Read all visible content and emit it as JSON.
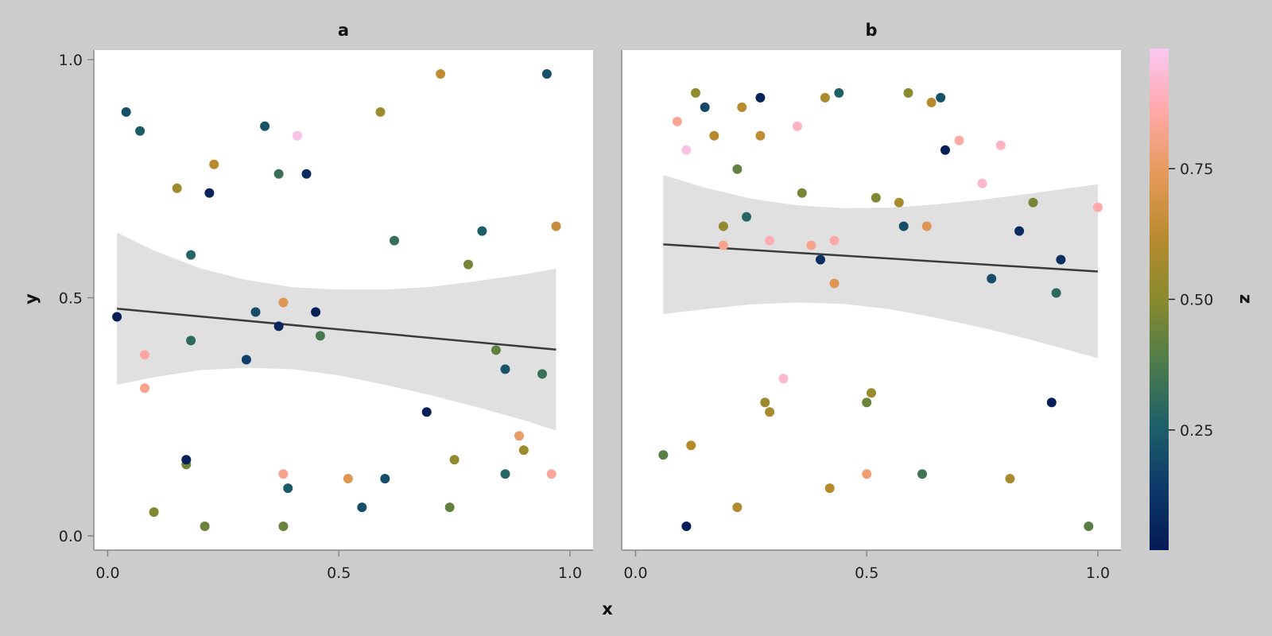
{
  "chart_data": {
    "type": "scatter",
    "xlabel": "x",
    "ylabel": "y",
    "colorbar": {
      "label": "z",
      "ticks": [
        0.25,
        0.5,
        0.75
      ],
      "tick_labels": [
        "0.25",
        "0.50",
        "0.75"
      ],
      "range": [
        0.02,
        0.98
      ],
      "colormap": [
        "#061a55",
        "#0d3a6a",
        "#1e6068",
        "#4e7c4a",
        "#8a8a2e",
        "#b88a2e",
        "#e69a5a",
        "#ffa8a8",
        "#f9c8f3"
      ]
    },
    "panels": [
      {
        "title": "a",
        "xlim": [
          -0.03,
          1.05
        ],
        "ylim": [
          -0.03,
          1.02
        ],
        "xticks": [
          0.0,
          0.5,
          1.0
        ],
        "xtick_labels": [
          "0.0",
          "0.5",
          "1.0"
        ],
        "yticks": [
          0.0,
          0.5,
          1.0
        ],
        "ytick_labels": [
          "0.0",
          "0.5",
          "1.0"
        ],
        "fit_line": {
          "x": [
            0.02,
            0.97
          ],
          "y": [
            0.477,
            0.391
          ]
        },
        "band": {
          "x": [
            0.02,
            0.1,
            0.2,
            0.3,
            0.4,
            0.5,
            0.6,
            0.7,
            0.8,
            0.9,
            0.97
          ],
          "upper": [
            0.637,
            0.599,
            0.562,
            0.537,
            0.522,
            0.517,
            0.517,
            0.523,
            0.535,
            0.549,
            0.561
          ],
          "lower": [
            0.317,
            0.333,
            0.348,
            0.353,
            0.35,
            0.337,
            0.317,
            0.295,
            0.27,
            0.243,
            0.221
          ]
        },
        "points": [
          {
            "x": 0.02,
            "y": 0.46,
            "z": 0.03
          },
          {
            "x": 0.04,
            "y": 0.89,
            "z": 0.2
          },
          {
            "x": 0.07,
            "y": 0.85,
            "z": 0.24
          },
          {
            "x": 0.08,
            "y": 0.38,
            "z": 0.85
          },
          {
            "x": 0.08,
            "y": 0.31,
            "z": 0.82
          },
          {
            "x": 0.1,
            "y": 0.05,
            "z": 0.48
          },
          {
            "x": 0.15,
            "y": 0.73,
            "z": 0.56
          },
          {
            "x": 0.17,
            "y": 0.15,
            "z": 0.45
          },
          {
            "x": 0.17,
            "y": 0.16,
            "z": 0.05
          },
          {
            "x": 0.18,
            "y": 0.59,
            "z": 0.28
          },
          {
            "x": 0.18,
            "y": 0.41,
            "z": 0.3
          },
          {
            "x": 0.21,
            "y": 0.02,
            "z": 0.44
          },
          {
            "x": 0.22,
            "y": 0.72,
            "z": 0.06
          },
          {
            "x": 0.23,
            "y": 0.78,
            "z": 0.62
          },
          {
            "x": 0.3,
            "y": 0.37,
            "z": 0.15
          },
          {
            "x": 0.32,
            "y": 0.47,
            "z": 0.2
          },
          {
            "x": 0.34,
            "y": 0.86,
            "z": 0.22
          },
          {
            "x": 0.37,
            "y": 0.76,
            "z": 0.33
          },
          {
            "x": 0.37,
            "y": 0.44,
            "z": 0.06
          },
          {
            "x": 0.38,
            "y": 0.49,
            "z": 0.72
          },
          {
            "x": 0.38,
            "y": 0.13,
            "z": 0.82
          },
          {
            "x": 0.38,
            "y": 0.02,
            "z": 0.44
          },
          {
            "x": 0.39,
            "y": 0.1,
            "z": 0.24
          },
          {
            "x": 0.41,
            "y": 0.84,
            "z": 0.96
          },
          {
            "x": 0.43,
            "y": 0.76,
            "z": 0.08
          },
          {
            "x": 0.45,
            "y": 0.47,
            "z": 0.04
          },
          {
            "x": 0.46,
            "y": 0.42,
            "z": 0.36
          },
          {
            "x": 0.52,
            "y": 0.12,
            "z": 0.72
          },
          {
            "x": 0.55,
            "y": 0.06,
            "z": 0.2
          },
          {
            "x": 0.59,
            "y": 0.89,
            "z": 0.55
          },
          {
            "x": 0.6,
            "y": 0.12,
            "z": 0.2
          },
          {
            "x": 0.62,
            "y": 0.62,
            "z": 0.32
          },
          {
            "x": 0.69,
            "y": 0.26,
            "z": 0.03
          },
          {
            "x": 0.72,
            "y": 0.97,
            "z": 0.64
          },
          {
            "x": 0.74,
            "y": 0.06,
            "z": 0.42
          },
          {
            "x": 0.75,
            "y": 0.16,
            "z": 0.52
          },
          {
            "x": 0.78,
            "y": 0.57,
            "z": 0.46
          },
          {
            "x": 0.81,
            "y": 0.64,
            "z": 0.25
          },
          {
            "x": 0.84,
            "y": 0.39,
            "z": 0.42
          },
          {
            "x": 0.86,
            "y": 0.13,
            "z": 0.28
          },
          {
            "x": 0.86,
            "y": 0.35,
            "z": 0.22
          },
          {
            "x": 0.89,
            "y": 0.21,
            "z": 0.76
          },
          {
            "x": 0.9,
            "y": 0.18,
            "z": 0.54
          },
          {
            "x": 0.94,
            "y": 0.34,
            "z": 0.33
          },
          {
            "x": 0.95,
            "y": 0.97,
            "z": 0.2
          },
          {
            "x": 0.96,
            "y": 0.13,
            "z": 0.84
          },
          {
            "x": 0.97,
            "y": 0.65,
            "z": 0.66
          }
        ]
      },
      {
        "title": "b",
        "xlim": [
          -0.03,
          1.05
        ],
        "ylim": [
          -0.03,
          1.02
        ],
        "xticks": [
          0.0,
          0.5,
          1.0
        ],
        "xtick_labels": [
          "0.0",
          "0.5",
          "1.0"
        ],
        "fit_line": {
          "x": [
            0.06,
            1.0
          ],
          "y": [
            0.612,
            0.555
          ]
        },
        "band": {
          "x": [
            0.06,
            0.15,
            0.25,
            0.35,
            0.45,
            0.55,
            0.65,
            0.75,
            0.85,
            0.93,
            1.0
          ],
          "upper": [
            0.758,
            0.731,
            0.708,
            0.694,
            0.688,
            0.689,
            0.696,
            0.706,
            0.718,
            0.729,
            0.738
          ],
          "lower": [
            0.466,
            0.476,
            0.486,
            0.49,
            0.487,
            0.476,
            0.458,
            0.437,
            0.413,
            0.392,
            0.373
          ]
        },
        "points": [
          {
            "x": 0.06,
            "y": 0.17,
            "z": 0.4
          },
          {
            "x": 0.09,
            "y": 0.87,
            "z": 0.83
          },
          {
            "x": 0.11,
            "y": 0.81,
            "z": 0.96
          },
          {
            "x": 0.11,
            "y": 0.02,
            "z": 0.04
          },
          {
            "x": 0.12,
            "y": 0.19,
            "z": 0.62
          },
          {
            "x": 0.13,
            "y": 0.93,
            "z": 0.52
          },
          {
            "x": 0.15,
            "y": 0.9,
            "z": 0.18
          },
          {
            "x": 0.17,
            "y": 0.84,
            "z": 0.62
          },
          {
            "x": 0.19,
            "y": 0.61,
            "z": 0.82
          },
          {
            "x": 0.19,
            "y": 0.65,
            "z": 0.52
          },
          {
            "x": 0.22,
            "y": 0.77,
            "z": 0.42
          },
          {
            "x": 0.22,
            "y": 0.06,
            "z": 0.6
          },
          {
            "x": 0.23,
            "y": 0.9,
            "z": 0.62
          },
          {
            "x": 0.24,
            "y": 0.67,
            "z": 0.28
          },
          {
            "x": 0.27,
            "y": 0.84,
            "z": 0.64
          },
          {
            "x": 0.27,
            "y": 0.92,
            "z": 0.05
          },
          {
            "x": 0.28,
            "y": 0.28,
            "z": 0.55
          },
          {
            "x": 0.29,
            "y": 0.26,
            "z": 0.58
          },
          {
            "x": 0.29,
            "y": 0.62,
            "z": 0.88
          },
          {
            "x": 0.32,
            "y": 0.33,
            "z": 0.92
          },
          {
            "x": 0.35,
            "y": 0.86,
            "z": 0.9
          },
          {
            "x": 0.36,
            "y": 0.72,
            "z": 0.46
          },
          {
            "x": 0.38,
            "y": 0.61,
            "z": 0.82
          },
          {
            "x": 0.4,
            "y": 0.58,
            "z": 0.1
          },
          {
            "x": 0.41,
            "y": 0.92,
            "z": 0.58
          },
          {
            "x": 0.42,
            "y": 0.1,
            "z": 0.62
          },
          {
            "x": 0.43,
            "y": 0.53,
            "z": 0.72
          },
          {
            "x": 0.43,
            "y": 0.62,
            "z": 0.86
          },
          {
            "x": 0.44,
            "y": 0.93,
            "z": 0.26
          },
          {
            "x": 0.5,
            "y": 0.28,
            "z": 0.44
          },
          {
            "x": 0.5,
            "y": 0.13,
            "z": 0.78
          },
          {
            "x": 0.51,
            "y": 0.3,
            "z": 0.54
          },
          {
            "x": 0.52,
            "y": 0.71,
            "z": 0.48
          },
          {
            "x": 0.57,
            "y": 0.7,
            "z": 0.58
          },
          {
            "x": 0.58,
            "y": 0.65,
            "z": 0.2
          },
          {
            "x": 0.59,
            "y": 0.93,
            "z": 0.5
          },
          {
            "x": 0.62,
            "y": 0.13,
            "z": 0.34
          },
          {
            "x": 0.63,
            "y": 0.65,
            "z": 0.72
          },
          {
            "x": 0.64,
            "y": 0.91,
            "z": 0.62
          },
          {
            "x": 0.66,
            "y": 0.92,
            "z": 0.22
          },
          {
            "x": 0.67,
            "y": 0.81,
            "z": 0.04
          },
          {
            "x": 0.7,
            "y": 0.83,
            "z": 0.86
          },
          {
            "x": 0.75,
            "y": 0.74,
            "z": 0.92
          },
          {
            "x": 0.77,
            "y": 0.54,
            "z": 0.2
          },
          {
            "x": 0.79,
            "y": 0.82,
            "z": 0.9
          },
          {
            "x": 0.81,
            "y": 0.12,
            "z": 0.58
          },
          {
            "x": 0.83,
            "y": 0.64,
            "z": 0.08
          },
          {
            "x": 0.86,
            "y": 0.7,
            "z": 0.46
          },
          {
            "x": 0.9,
            "y": 0.28,
            "z": 0.04
          },
          {
            "x": 0.91,
            "y": 0.51,
            "z": 0.3
          },
          {
            "x": 0.92,
            "y": 0.58,
            "z": 0.1
          },
          {
            "x": 0.98,
            "y": 0.02,
            "z": 0.4
          },
          {
            "x": 1.0,
            "y": 0.69,
            "z": 0.86
          }
        ]
      }
    ]
  }
}
